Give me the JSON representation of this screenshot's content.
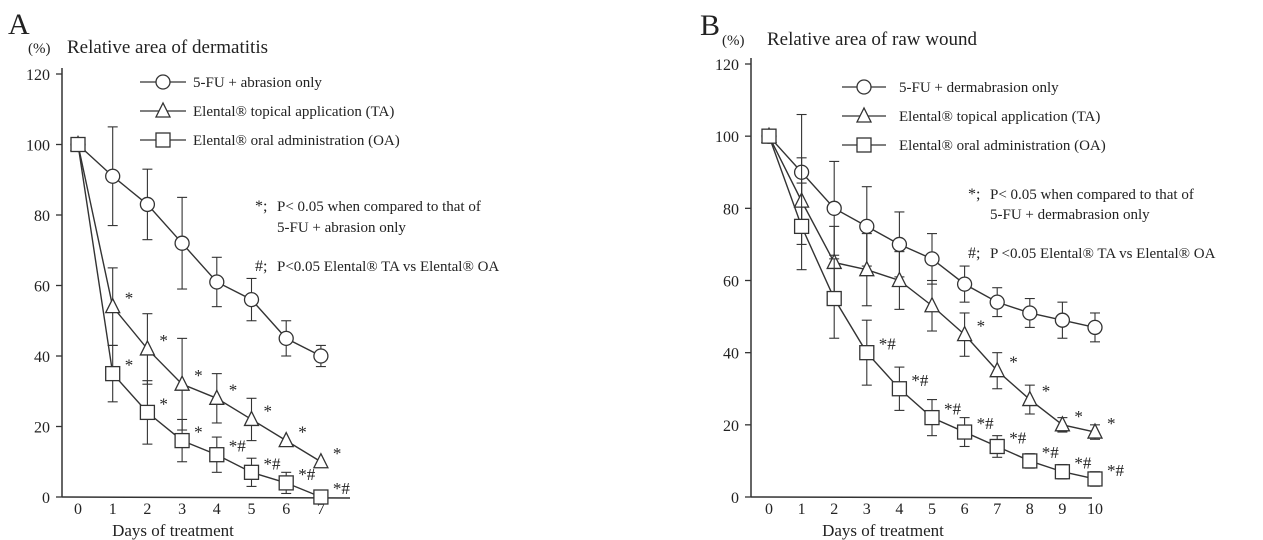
{
  "chart_data": [
    {
      "type": "line",
      "panel_label": "A",
      "unit_label": "(%)",
      "title": "Relative area of dermatitis",
      "xlabel": "Days of treatment",
      "ylabel": "",
      "x": [
        0,
        1,
        2,
        3,
        4,
        5,
        6,
        7
      ],
      "xlim": [
        0,
        7
      ],
      "ylim": [
        0,
        120
      ],
      "yticks": [
        0,
        20,
        40,
        60,
        80,
        100,
        120
      ],
      "legend_position": "top",
      "series": [
        {
          "name": "5-FU + abrasion only",
          "marker": "circle",
          "values": [
            100,
            91,
            83,
            72,
            61,
            56,
            45,
            40
          ],
          "errors": [
            0,
            14,
            10,
            13,
            7,
            6,
            5,
            3
          ],
          "annotations": [
            "",
            "",
            "",
            "",
            "",
            "",
            "",
            ""
          ]
        },
        {
          "name": "Elental® topical application (TA)",
          "marker": "triangle",
          "values": [
            100,
            54,
            42,
            32,
            28,
            22,
            16,
            10
          ],
          "errors": [
            0,
            11,
            10,
            13,
            7,
            6,
            0,
            0
          ],
          "annotations": [
            "",
            "*",
            "*",
            "*",
            "*",
            "*",
            "*",
            "*"
          ]
        },
        {
          "name": "Elental® oral administration (OA)",
          "marker": "square",
          "values": [
            100,
            35,
            24,
            16,
            12,
            7,
            4,
            0
          ],
          "errors": [
            0,
            8,
            9,
            6,
            5,
            4,
            3,
            0
          ],
          "annotations": [
            "",
            "*",
            "*",
            "*",
            "*#",
            "*#",
            "*#",
            "*#"
          ]
        }
      ],
      "notes": [
        {
          "symbol": "*;",
          "text_line1": "P< 0.05 when compared to that of",
          "text_line2": "5-FU + abrasion only"
        },
        {
          "symbol": "#;",
          "text_line1": "P<0.05  Elental® TA vs Elental® OA",
          "text_line2": ""
        }
      ]
    },
    {
      "type": "line",
      "panel_label": "B",
      "unit_label": "(%)",
      "title": "Relative area of raw wound",
      "xlabel": "Days of treatment",
      "ylabel": "",
      "x": [
        0,
        1,
        2,
        3,
        4,
        5,
        6,
        7,
        8,
        9,
        10
      ],
      "xlim": [
        0,
        10
      ],
      "ylim": [
        0,
        120
      ],
      "yticks": [
        0,
        20,
        40,
        60,
        80,
        100,
        120
      ],
      "legend_position": "top",
      "series": [
        {
          "name": "5-FU + dermabrasion  only",
          "marker": "circle",
          "values": [
            100,
            90,
            80,
            75,
            70,
            66,
            59,
            54,
            51,
            49,
            47
          ],
          "errors": [
            0,
            16,
            13,
            11,
            9,
            7,
            5,
            4,
            4,
            5,
            4
          ],
          "annotations": [
            "",
            "",
            "",
            "",
            "",
            "",
            "",
            "",
            "",
            "",
            ""
          ]
        },
        {
          "name": "Elental® topical application (TA)",
          "marker": "triangle",
          "values": [
            100,
            82,
            65,
            63,
            60,
            53,
            45,
            35,
            27,
            20,
            18
          ],
          "errors": [
            0,
            12,
            10,
            10,
            8,
            7,
            6,
            5,
            4,
            2,
            2
          ],
          "annotations": [
            "",
            "",
            "",
            "",
            "",
            "",
            "*",
            "*",
            "*",
            "*",
            "*"
          ]
        },
        {
          "name": "Elental® oral administration (OA)",
          "marker": "square",
          "values": [
            100,
            75,
            55,
            40,
            30,
            22,
            18,
            14,
            10,
            7,
            5
          ],
          "errors": [
            0,
            12,
            11,
            9,
            6,
            5,
            4,
            3,
            2,
            2,
            2
          ],
          "annotations": [
            "",
            "",
            "",
            "*#",
            "*#",
            "*#",
            "*#",
            "*#",
            "*#",
            "*#",
            "*#"
          ]
        }
      ],
      "notes": [
        {
          "symbol": "*;",
          "text_line1": "P< 0.05 when compared to that of",
          "text_line2": "5-FU + dermabrasion  only"
        },
        {
          "symbol": "#;",
          "text_line1": "P <0.05  Elental® TA  vs  Elental® OA",
          "text_line2": ""
        }
      ]
    }
  ]
}
